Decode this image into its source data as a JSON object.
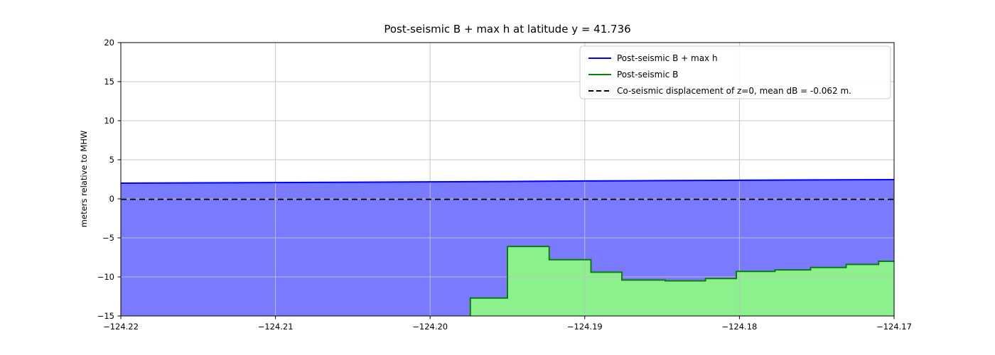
{
  "chart_data": {
    "type": "line",
    "title": "Post-seismic B + max h at latitude y = 41.736",
    "xlabel": "",
    "ylabel": "meters relative to MHW",
    "xlim": [
      -124.22,
      -124.17
    ],
    "ylim": [
      -15,
      20
    ],
    "xticks": [
      -124.22,
      -124.21,
      -124.2,
      -124.19,
      -124.18,
      -124.17
    ],
    "yticks": [
      -15,
      -10,
      -5,
      0,
      5,
      10,
      15,
      20
    ],
    "grid": true,
    "legend_position": "upper right",
    "series": [
      {
        "name": "Post-seismic B + max h",
        "kind": "line",
        "color": "#0000ff",
        "line_width": 2,
        "fill_to_bottom": true,
        "fill_color": "#0000ff",
        "fill_opacity": 0.52,
        "x": [
          -124.22,
          -124.21,
          -124.2,
          -124.195,
          -124.19,
          -124.185,
          -124.18,
          -124.175,
          -124.17
        ],
        "y": [
          2.0,
          2.08,
          2.17,
          2.22,
          2.28,
          2.33,
          2.38,
          2.42,
          2.45
        ]
      },
      {
        "name": "Post-seismic B",
        "kind": "step",
        "color": "#0a7d0a",
        "line_width": 2,
        "fill_to_bottom": true,
        "fill_color": "#8cf08c",
        "fill_opacity": 1,
        "edges": [
          -124.1974,
          -124.195,
          -124.1923,
          -124.1896,
          -124.1876,
          -124.1848,
          -124.1822,
          -124.1802,
          -124.1777,
          -124.1754,
          -124.1731,
          -124.171,
          -124.17
        ],
        "values": [
          -12.7,
          -6.1,
          -7.8,
          -9.4,
          -10.4,
          -10.5,
          -10.2,
          -9.3,
          -9.1,
          -8.8,
          -8.4,
          -8.0
        ]
      },
      {
        "name": "Co-seismic displacement of z=0, mean dB = -0.062 m.",
        "kind": "hline",
        "color": "#000000",
        "dashed": true,
        "line_width": 1.8,
        "y_value": -0.062
      }
    ]
  }
}
